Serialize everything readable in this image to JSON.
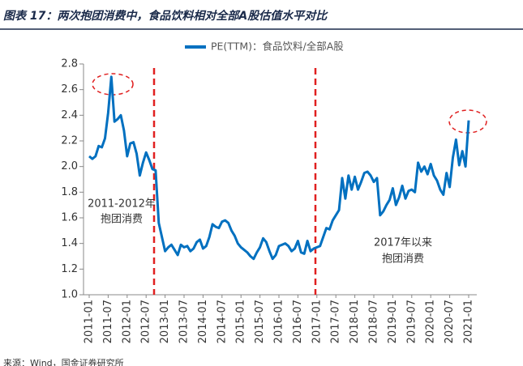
{
  "title": "图表 17：两次抱团消费中，食品饮料相对全部A股估值水平对比",
  "source": "来源：Wind，国金证券研究所",
  "chart_data": {
    "type": "line",
    "categories": [
      "2011-01",
      null,
      null,
      null,
      null,
      null,
      "2011-07",
      null,
      null,
      null,
      null,
      null,
      "2012-01",
      null,
      null,
      null,
      null,
      null,
      "2012-07",
      null,
      null,
      null,
      null,
      null,
      "2013-01",
      null,
      null,
      null,
      null,
      null,
      "2013-07",
      null,
      null,
      null,
      null,
      null,
      "2014-01",
      null,
      null,
      null,
      null,
      null,
      "2014-07",
      null,
      null,
      null,
      null,
      null,
      "2015-01",
      null,
      null,
      null,
      null,
      null,
      "2015-07",
      null,
      null,
      null,
      null,
      null,
      "2016-01",
      null,
      null,
      null,
      null,
      null,
      "2016-07",
      null,
      null,
      null,
      null,
      null,
      "2017-01",
      null,
      null,
      null,
      null,
      null,
      "2017-07",
      null,
      null,
      null,
      null,
      null,
      "2018-01",
      null,
      null,
      null,
      null,
      null,
      "2018-07",
      null,
      null,
      null,
      null,
      null,
      "2019-01",
      null,
      null,
      null,
      null,
      null,
      "2019-07",
      null,
      null,
      null,
      null,
      null,
      "2020-01",
      null,
      null,
      null,
      null,
      null,
      "2020-07",
      null,
      null,
      null,
      null,
      null,
      "2021-01"
    ],
    "series": [
      {
        "name": "PE(TTM)：食品饮料/全部A股",
        "color": "#0070c0",
        "values": [
          2.08,
          2.06,
          2.08,
          2.16,
          2.15,
          2.22,
          2.42,
          2.7,
          2.35,
          2.37,
          2.4,
          2.28,
          2.08,
          2.18,
          2.19,
          2.1,
          1.93,
          2.03,
          2.11,
          2.05,
          1.98,
          1.97,
          1.56,
          1.45,
          1.34,
          1.37,
          1.39,
          1.35,
          1.31,
          1.39,
          1.37,
          1.38,
          1.34,
          1.36,
          1.41,
          1.43,
          1.36,
          1.38,
          1.45,
          1.55,
          1.53,
          1.52,
          1.57,
          1.58,
          1.56,
          1.5,
          1.46,
          1.4,
          1.37,
          1.35,
          1.33,
          1.3,
          1.28,
          1.33,
          1.37,
          1.44,
          1.41,
          1.34,
          1.28,
          1.31,
          1.38,
          1.39,
          1.4,
          1.38,
          1.34,
          1.36,
          1.42,
          1.33,
          1.32,
          1.42,
          1.34,
          1.36,
          1.37,
          1.38,
          1.45,
          1.52,
          1.51,
          1.58,
          1.62,
          1.66,
          1.91,
          1.75,
          1.93,
          1.82,
          1.92,
          1.82,
          1.88,
          1.95,
          1.96,
          1.93,
          1.88,
          1.91,
          1.62,
          1.65,
          1.7,
          1.74,
          1.83,
          1.7,
          1.76,
          1.85,
          1.75,
          1.81,
          1.82,
          1.8,
          2.03,
          1.96,
          2.0,
          1.94,
          2.02,
          1.93,
          1.89,
          1.82,
          1.78,
          1.95,
          1.84,
          2.07,
          2.21,
          2.01,
          2.12,
          2.0,
          2.36
        ]
      }
    ],
    "ylim": [
      1.0,
      2.8
    ],
    "yticks": [
      {
        "value": 1.0,
        "label": "1.0"
      },
      1.2,
      1.4,
      1.6,
      1.8,
      {
        "value": 2.0,
        "label": "2.0"
      },
      2.2,
      2.4,
      2.6,
      2.8
    ],
    "annotations": [
      "2011-2012年",
      "抱团消费",
      "2017年以来",
      "抱团消费"
    ]
  }
}
